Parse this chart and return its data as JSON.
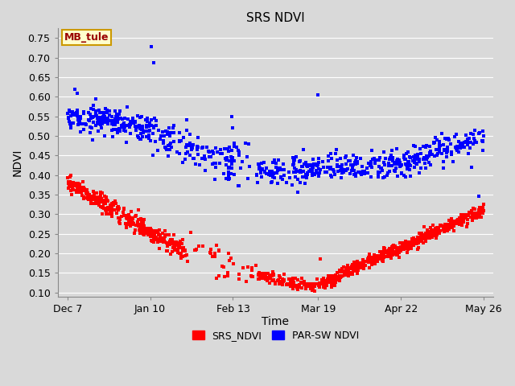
{
  "title": "SRS NDVI",
  "xlabel": "Time",
  "ylabel": "NDVI",
  "ylim": [
    0.09,
    0.775
  ],
  "yticks": [
    0.1,
    0.15,
    0.2,
    0.25,
    0.3,
    0.35,
    0.4,
    0.45,
    0.5,
    0.55,
    0.6,
    0.65,
    0.7,
    0.75
  ],
  "ytick_labels": [
    "0.10",
    "0.15",
    "0.20",
    "0.25",
    "0.30",
    "0.35",
    "0.40",
    "0.45",
    "0.50",
    "0.55",
    "0.60",
    "0.65",
    "0.70",
    "0.75"
  ],
  "xtick_positions": [
    0,
    34,
    68,
    103,
    137,
    171
  ],
  "xtick_labels": [
    "Dec 7",
    "Jan 10",
    "Feb 13",
    "Mar 19",
    "Apr 22",
    "May 26"
  ],
  "total_days": 171,
  "legend_labels": [
    "SRS_NDVI",
    "PAR-SW NDVI"
  ],
  "red_color": "#ff0000",
  "blue_color": "#0000ff",
  "annotation_text": "MB_tule",
  "annotation_facecolor": "#ffffcc",
  "annotation_edgecolor": "#cc9900",
  "annotation_textcolor": "#990000",
  "background_color": "#d9d9d9",
  "plot_bg_color": "#d9d9d9",
  "grid_color": "#ffffff",
  "marker_size": 9,
  "title_fontsize": 11,
  "tick_fontsize": 9,
  "label_fontsize": 10
}
